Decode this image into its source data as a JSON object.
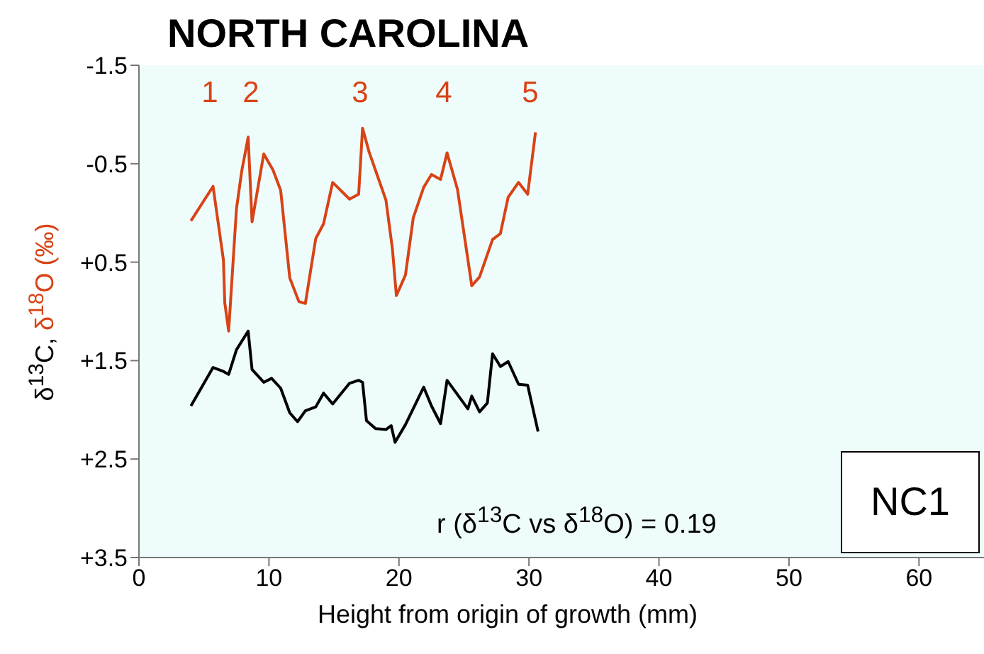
{
  "chart_data": {
    "type": "line",
    "title": "NORTH CAROLINA",
    "xlabel": "Height from origin of growth (mm)",
    "ylabel": "δ$^{13}$C, δ$^{18}$O (‰)",
    "xlim": [
      0,
      65
    ],
    "xticks": [
      0,
      10,
      20,
      30,
      40,
      50,
      60
    ],
    "ylim": [
      3.5,
      -1.5
    ],
    "yticks": [
      -1.5,
      -0.5,
      {
        "value": 0.5,
        "label": "+0.5"
      },
      {
        "value": 1.5,
        "label": "+1.5"
      },
      {
        "value": 2.5,
        "label": "+2.5"
      },
      {
        "value": 3.5,
        "label": "+3.5"
      }
    ],
    "grid": false,
    "legend": false,
    "marker": "none",
    "line_style": "solid",
    "series": [
      {
        "color": "#000000",
        "x": [
          4.0,
          5.7,
          6.5,
          6.9,
          7.5,
          8.4,
          8.7,
          9.6,
          10.2,
          10.9,
          11.6,
          12.2,
          12.8,
          13.6,
          14.2,
          14.9,
          16.2,
          16.9,
          17.2,
          17.5,
          18.2,
          19.0,
          19.4,
          19.7,
          20.5,
          21.9,
          22.5,
          23.2,
          23.7,
          25.3,
          25.6,
          26.2,
          26.8,
          27.2,
          27.8,
          28.4,
          29.2,
          29.9,
          30.7
        ],
        "values": [
          1.96,
          1.57,
          1.61,
          1.64,
          1.39,
          1.2,
          1.59,
          1.72,
          1.68,
          1.78,
          2.03,
          2.12,
          2.01,
          1.97,
          1.83,
          1.94,
          1.73,
          1.7,
          1.72,
          2.11,
          2.19,
          2.2,
          2.16,
          2.33,
          2.15,
          1.77,
          1.96,
          2.14,
          1.7,
          1.99,
          1.86,
          2.02,
          1.93,
          1.43,
          1.56,
          1.51,
          1.74,
          1.75,
          2.22
        ]
      },
      {
        "color": "#d84315",
        "x": [
          4.0,
          5.7,
          6.5,
          6.6,
          6.9,
          7.5,
          7.9,
          8.4,
          8.7,
          9.6,
          10.3,
          10.9,
          11.6,
          12.3,
          12.8,
          13.6,
          14.2,
          14.9,
          16.2,
          16.9,
          17.2,
          17.7,
          19.0,
          19.5,
          19.8,
          20.5,
          21.1,
          21.9,
          22.5,
          23.2,
          23.7,
          24.5,
          25.6,
          26.2,
          27.2,
          27.8,
          28.4,
          29.2,
          29.9,
          30.5
        ],
        "values": [
          0.08,
          -0.27,
          0.48,
          0.91,
          1.2,
          -0.04,
          -0.42,
          -0.77,
          0.09,
          -0.6,
          -0.44,
          -0.23,
          0.66,
          0.9,
          0.92,
          0.26,
          0.11,
          -0.31,
          -0.14,
          -0.19,
          -0.86,
          -0.62,
          -0.13,
          0.37,
          0.84,
          0.63,
          0.05,
          -0.26,
          -0.39,
          -0.34,
          -0.61,
          -0.24,
          0.74,
          0.65,
          0.27,
          0.21,
          -0.16,
          -0.31,
          -0.19,
          -0.82
        ]
      }
    ],
    "annotations": [
      "1",
      "2",
      "3",
      "4",
      "5",
      "r (δ$^{13}$C vs δ$^{18}$O) = 0.19",
      "NC1"
    ]
  }
}
